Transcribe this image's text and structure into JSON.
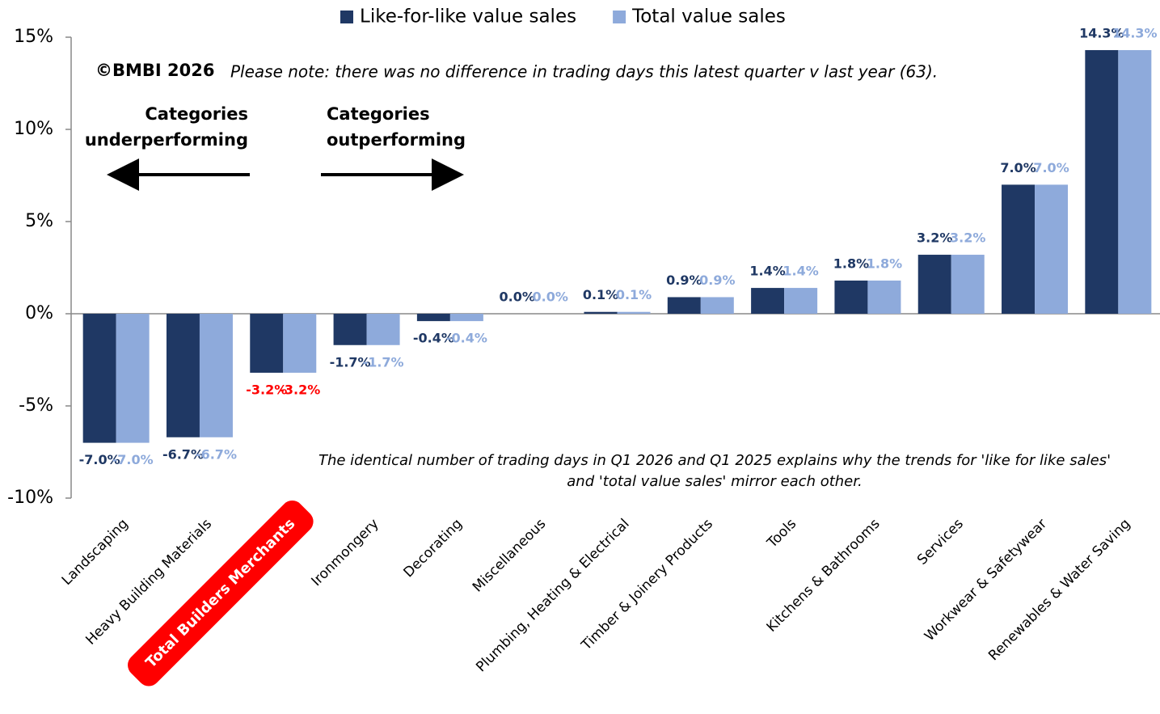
{
  "chart_data": {
    "type": "bar",
    "legend_position": "top",
    "categories": [
      "Landscaping",
      "Heavy Building Materials",
      "Total Builders Merchants",
      "Ironmongery",
      "Decorating",
      "Miscellaneous",
      "Plumbing, Heating & Electrical",
      "Timber & Joinery Products",
      "Tools",
      "Kitchens & Bathrooms",
      "Services",
      "Workwear & Safetywear",
      "Renewables & Water Saving"
    ],
    "series": [
      {
        "name": "Like-for-like value sales",
        "color": "#1f3864",
        "values": [
          -7.0,
          -6.7,
          -3.2,
          -1.7,
          -0.4,
          0.0,
          0.1,
          0.9,
          1.4,
          1.8,
          3.2,
          7.0,
          14.3
        ],
        "value_labels": [
          "-7.0%",
          "-6.7%",
          "-3.2%",
          "-1.7%",
          "-0.4%",
          "0.0%",
          "0.1%",
          "0.9%",
          "1.4%",
          "1.8%",
          "3.2%",
          "7.0%",
          "14.3%"
        ]
      },
      {
        "name": "Total value sales",
        "color": "#8eaadb",
        "values": [
          -7.0,
          -6.7,
          -3.2,
          -1.7,
          -0.4,
          0.0,
          0.1,
          0.9,
          1.4,
          1.8,
          3.2,
          7.0,
          14.3
        ],
        "value_labels": [
          "-7.0%",
          "-6.7%",
          "-3.2%",
          "-1.7%",
          "-0.4%",
          "0.0%",
          "0.1%",
          "0.9%",
          "1.4%",
          "1.8%",
          "3.2%",
          "7.0%",
          "14.3%"
        ]
      }
    ],
    "ylim": [
      -10,
      15
    ],
    "yticks": [
      {
        "value": -10,
        "label": "-10%"
      },
      {
        "value": -5,
        "label": "-5%"
      },
      {
        "value": 0,
        "label": "0%"
      },
      {
        "value": 5,
        "label": "5%"
      },
      {
        "value": 10,
        "label": "10%"
      },
      {
        "value": 15,
        "label": "15%"
      }
    ],
    "grid": false,
    "highlight_category": "Total Builders Merchants",
    "highlight_color": "#ff0000",
    "annotations": {
      "copyright": "©BMBI 2026",
      "note": "Please note: there was no difference in trading days this latest quarter v last year (63).",
      "under": [
        "Categories",
        "underperforming"
      ],
      "out": [
        "Categories",
        "outperforming"
      ],
      "footnote": [
        "The identical number of trading days in Q1 2026 and Q1 2025 explains why the trends for 'like for like sales'",
        "and 'total value sales' mirror each other."
      ]
    }
  }
}
